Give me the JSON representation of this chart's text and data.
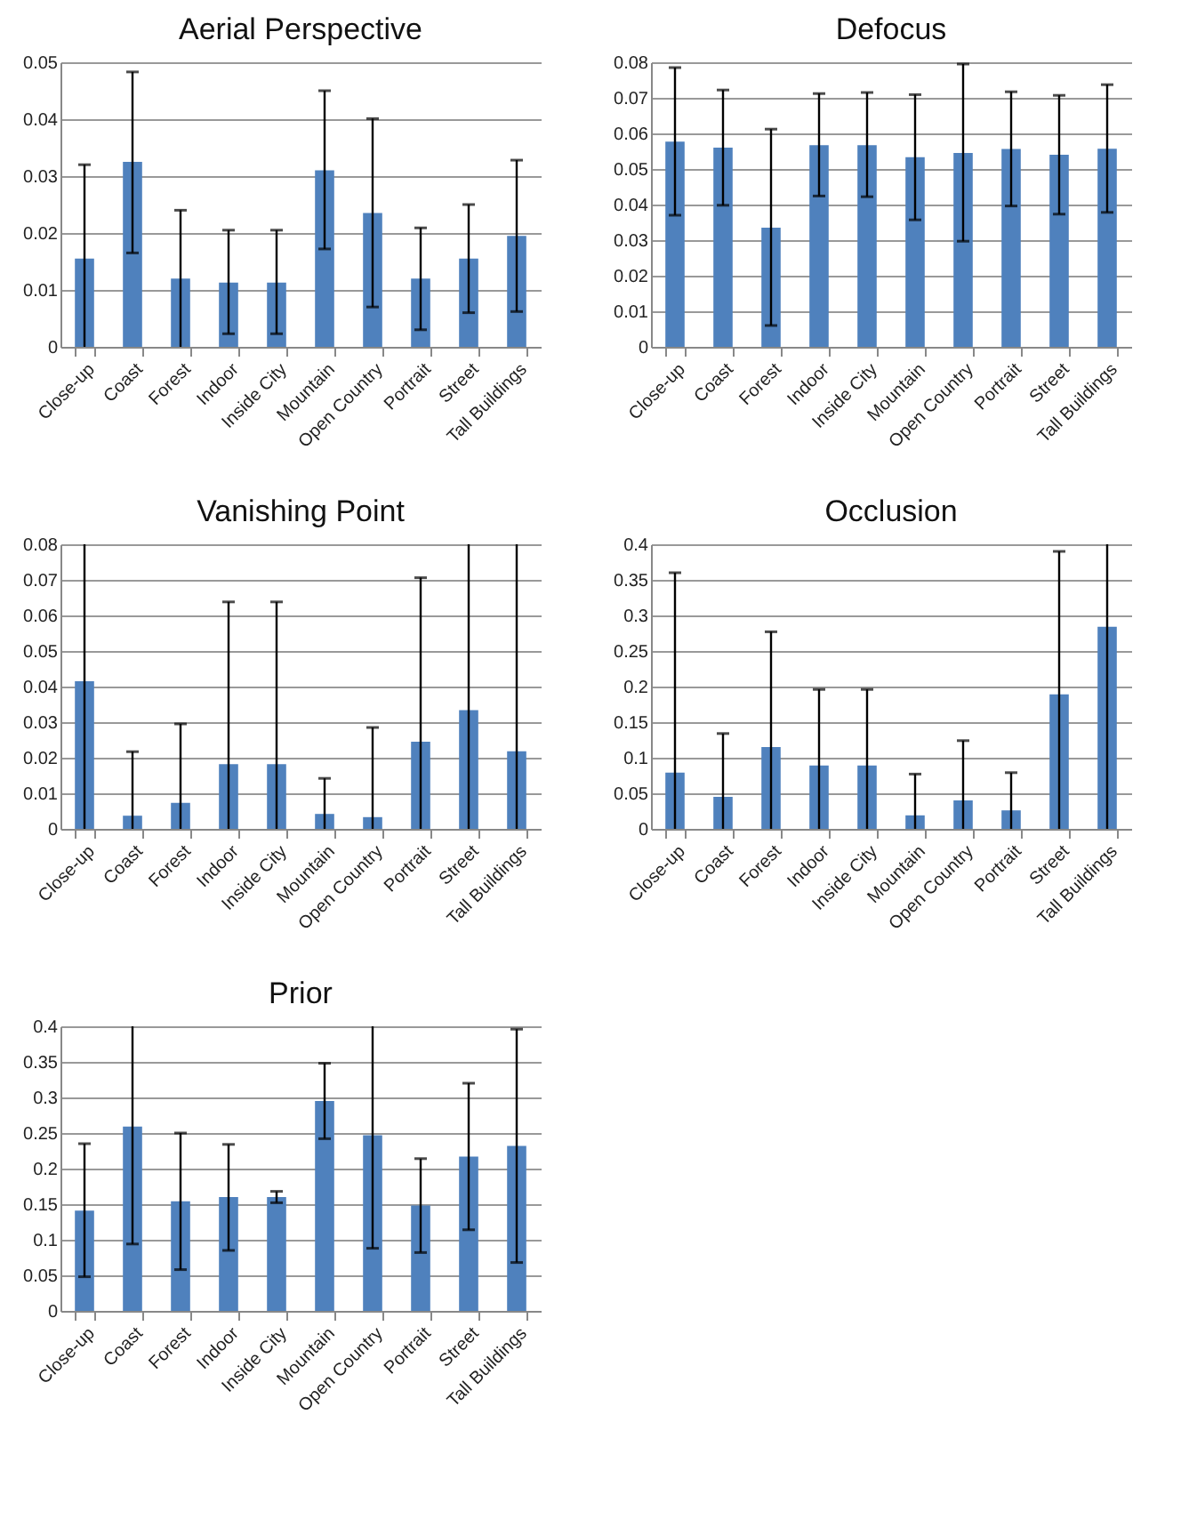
{
  "chart_data": [
    {
      "type": "bar",
      "title": "Aerial Perspective",
      "categories": [
        "Close-up",
        "Coast",
        "Forest",
        "Indoor",
        "Inside City",
        "Mountain",
        "Open Country",
        "Portrait",
        "Street",
        "Tall Buildings"
      ],
      "values": [
        0.0155,
        0.0325,
        0.012,
        0.0113,
        0.0113,
        0.031,
        0.0235,
        0.012,
        0.0155,
        0.0195
      ],
      "errors": [
        [
          0,
          0.032
        ],
        [
          0.0165,
          0.0483
        ],
        [
          0,
          0.024
        ],
        [
          0.0023,
          0.0205
        ],
        [
          0.0023,
          0.0205
        ],
        [
          0.0172,
          0.045
        ],
        [
          0.007,
          0.0401
        ],
        [
          0.003,
          0.0209
        ],
        [
          0.006,
          0.025
        ],
        [
          0.0062,
          0.0328
        ]
      ],
      "color": "#4f81bd",
      "ylim": [
        0,
        0.05
      ],
      "yticks": [
        0,
        0.01,
        0.02,
        0.03,
        0.04,
        0.05
      ],
      "grid": "y"
    },
    {
      "type": "bar",
      "title": "Defocus",
      "categories": [
        "Close-up",
        "Coast",
        "Forest",
        "Indoor",
        "Inside City",
        "Mountain",
        "Open Country",
        "Portrait",
        "Street",
        "Tall Buildings"
      ],
      "values": [
        0.0577,
        0.056,
        0.0335,
        0.0567,
        0.0567,
        0.0533,
        0.0545,
        0.0556,
        0.054,
        0.0557
      ],
      "errors": [
        [
          0.037,
          0.0785
        ],
        [
          0.0398,
          0.0722
        ],
        [
          0.006,
          0.0612
        ],
        [
          0.0424,
          0.0712
        ],
        [
          0.0422,
          0.0715
        ],
        [
          0.0357,
          0.0709
        ],
        [
          0.0297,
          0.0795
        ],
        [
          0.0396,
          0.0717
        ],
        [
          0.0373,
          0.0707
        ],
        [
          0.0378,
          0.0737
        ]
      ],
      "color": "#4f81bd",
      "ylim": [
        0,
        0.08
      ],
      "yticks": [
        0,
        0.01,
        0.02,
        0.03,
        0.04,
        0.05,
        0.06,
        0.07,
        0.08
      ],
      "grid": "y"
    },
    {
      "type": "bar",
      "title": "Vanishing Point",
      "categories": [
        "Close-up",
        "Coast",
        "Forest",
        "Indoor",
        "Inside City",
        "Mountain",
        "Open Country",
        "Portrait",
        "Street",
        "Tall Buildings"
      ],
      "values": [
        0.0415,
        0.0037,
        0.0073,
        0.0182,
        0.0182,
        0.0042,
        0.0033,
        0.0245,
        0.0334,
        0.0218
      ],
      "errors": [
        [
          0,
          0.08
        ],
        [
          0,
          0.0217
        ],
        [
          0,
          0.0295
        ],
        [
          0,
          0.0638
        ],
        [
          0,
          0.0638
        ],
        [
          0,
          0.0142
        ],
        [
          0,
          0.0285
        ],
        [
          0,
          0.0706
        ],
        [
          0,
          0.08
        ],
        [
          0,
          0.08
        ]
      ],
      "color": "#4f81bd",
      "ylim": [
        0,
        0.08
      ],
      "yticks": [
        0,
        0.01,
        0.02,
        0.03,
        0.04,
        0.05,
        0.06,
        0.07,
        0.08
      ],
      "grid": "y"
    },
    {
      "type": "bar",
      "title": "Occlusion",
      "categories": [
        "Close-up",
        "Coast",
        "Forest",
        "Indoor",
        "Inside City",
        "Mountain",
        "Open Country",
        "Portrait",
        "Street",
        "Tall Buildings"
      ],
      "values": [
        0.079,
        0.045,
        0.115,
        0.089,
        0.089,
        0.019,
        0.04,
        0.026,
        0.189,
        0.284
      ],
      "errors": [
        [
          0,
          0.36
        ],
        [
          0,
          0.134
        ],
        [
          0,
          0.277
        ],
        [
          0,
          0.196
        ],
        [
          0,
          0.196
        ],
        [
          0,
          0.077
        ],
        [
          0,
          0.124
        ],
        [
          0,
          0.079
        ],
        [
          0,
          0.39
        ],
        [
          0,
          0.4
        ]
      ],
      "color": "#4f81bd",
      "ylim": [
        0,
        0.4
      ],
      "yticks": [
        0,
        0.05,
        0.1,
        0.15,
        0.2,
        0.25,
        0.3,
        0.35,
        0.4
      ],
      "grid": "y"
    },
    {
      "type": "bar",
      "title": "Prior",
      "categories": [
        "Close-up",
        "Coast",
        "Forest",
        "Indoor",
        "Inside City",
        "Mountain",
        "Open Country",
        "Portrait",
        "Street",
        "Tall Buildings"
      ],
      "values": [
        0.141,
        0.259,
        0.154,
        0.16,
        0.16,
        0.295,
        0.247,
        0.148,
        0.217,
        0.232
      ],
      "errors": [
        [
          0.048,
          0.235
        ],
        [
          0.094,
          0.4
        ],
        [
          0.058,
          0.25
        ],
        [
          0.085,
          0.234
        ],
        [
          0.152,
          0.168
        ],
        [
          0.242,
          0.348
        ],
        [
          0.088,
          0.4
        ],
        [
          0.082,
          0.214
        ],
        [
          0.114,
          0.32
        ],
        [
          0.068,
          0.396
        ]
      ],
      "color": "#4f81bd",
      "ylim": [
        0,
        0.4
      ],
      "yticks": [
        0,
        0.05,
        0.1,
        0.15,
        0.2,
        0.25,
        0.3,
        0.35,
        0.4
      ],
      "grid": "y"
    }
  ]
}
